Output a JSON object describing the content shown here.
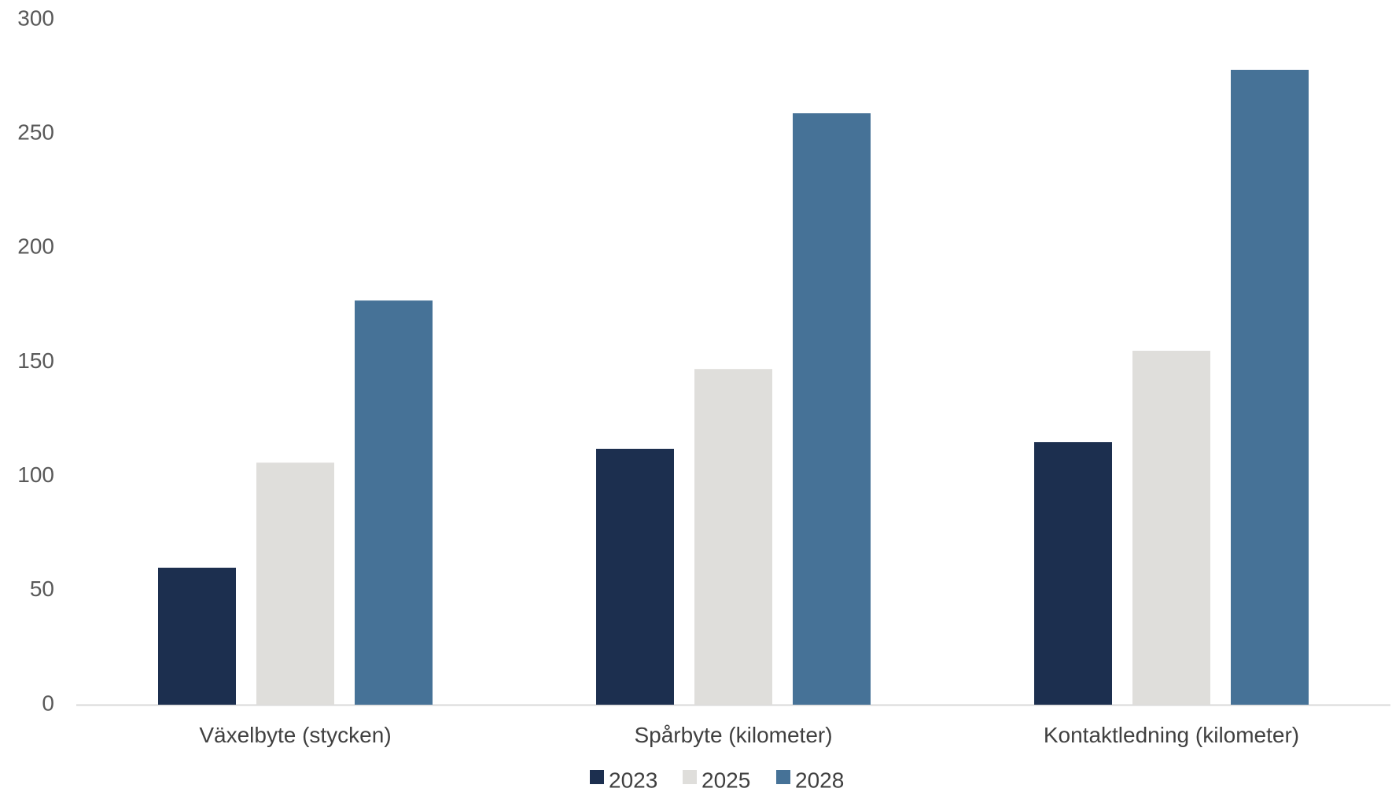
{
  "chart_data": {
    "type": "bar",
    "categories": [
      "Växelbyte (stycken)",
      "Spårbyte (kilometer)",
      "Kontaktledning (kilometer)"
    ],
    "series": [
      {
        "name": "2023",
        "values": [
          60,
          112,
          115
        ],
        "color": "#1c2f4f"
      },
      {
        "name": "2025",
        "values": [
          106,
          147,
          155
        ],
        "color": "#dfdedb"
      },
      {
        "name": "2028",
        "values": [
          177,
          259,
          278
        ],
        "color": "#467297"
      }
    ],
    "ylim": [
      0,
      300
    ],
    "yticks": [
      0,
      50,
      100,
      150,
      200,
      250,
      300
    ],
    "grid": false,
    "legend": "bottom-center",
    "axis_color": "#d9d9d9"
  }
}
